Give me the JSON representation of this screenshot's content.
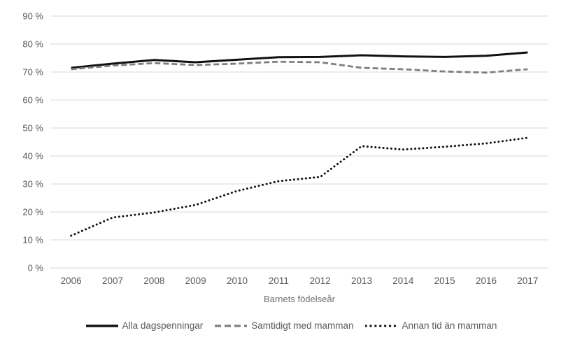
{
  "chart_data": {
    "type": "line",
    "categories": [
      "2006",
      "2007",
      "2008",
      "2009",
      "2010",
      "2011",
      "2012",
      "2013",
      "2014",
      "2015",
      "2016",
      "2017"
    ],
    "series": [
      {
        "name": "Alla dagspenningar",
        "style": "solid",
        "color": "#111111",
        "values": [
          71.5,
          73,
          74.3,
          73.5,
          74.4,
          75.3,
          75.4,
          76,
          75.6,
          75.4,
          75.8,
          77
        ]
      },
      {
        "name": "Samtidigt med mamman",
        "style": "dashed",
        "color": "#7f7f7f",
        "values": [
          71,
          72.3,
          73.2,
          72.5,
          73,
          73.7,
          73.5,
          71.5,
          71,
          70.2,
          69.8,
          71
        ]
      },
      {
        "name": "Annan tid än mamman",
        "style": "dotted",
        "color": "#111111",
        "values": [
          11.5,
          18,
          19.8,
          22.5,
          27.5,
          31,
          32.5,
          43.5,
          42.3,
          43.3,
          44.5,
          46.5
        ]
      }
    ],
    "title": "",
    "xlabel": "Barnets födelseår",
    "ylabel": "",
    "ylim": [
      0,
      90
    ],
    "ytick_step": 10,
    "ytick_labels": [
      "0 %",
      "10 %",
      "20 %",
      "30 %",
      "40 %",
      "50 %",
      "60 %",
      "70 %",
      "80 %",
      "90 %"
    ],
    "grid": true,
    "legend_position": "bottom",
    "colors": {
      "gridline": "#d9d9d9",
      "axis_text": "#595959",
      "background": "#ffffff"
    }
  }
}
